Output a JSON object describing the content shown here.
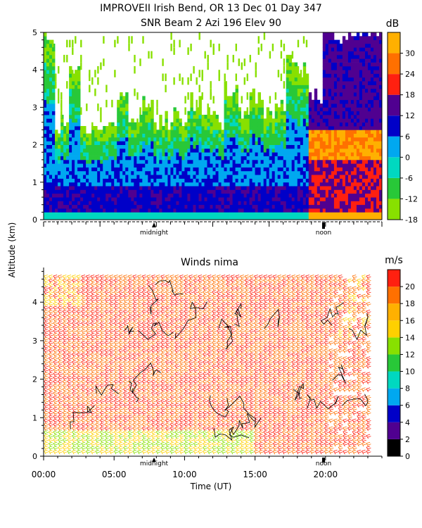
{
  "title_line1": "IMPROVEII  Irish Bend, OR  13 Dec 01 Day 347",
  "title_line2": "SNR Beam 2 Azi 196 Elev 90",
  "ylabel": "Altitude (km)",
  "xlabel": "Time (UT)",
  "marker_midnight": "midnight",
  "marker_noon": "noon",
  "chart_data": [
    {
      "type": "heatmap",
      "title": "SNR Beam 2 Azi 196 Elev 90",
      "colorbar_label": "dB",
      "colorbar_ticks": [
        "30",
        "24",
        "18",
        "12",
        "6",
        "0",
        "-6",
        "-12",
        "-18"
      ],
      "colorbar_range": [
        -18,
        36
      ],
      "x_range_hours": [
        0,
        24
      ],
      "y_range_km": [
        0,
        5
      ],
      "y_ticks": [
        "0",
        "1",
        "2",
        "3",
        "4",
        "5"
      ],
      "colors": [
        "#88e000",
        "#28c838",
        "#00d8c0",
        "#00a8f0",
        "#0000c8",
        "#500090",
        "#ff2010",
        "#ff7000",
        "#ffb000"
      ],
      "signal_top_km": [
        4.8,
        2.5,
        4.2,
        2.2,
        2.3,
        2.4,
        3.2,
        2.8,
        3.0,
        2.6,
        2.7,
        2.6,
        3.1,
        2.9,
        2.7,
        3.5,
        2.9,
        3.2,
        3.0,
        3.0,
        4.4,
        4.0,
        3.3,
        5.0,
        5.0,
        5.0,
        5.0,
        5.0
      ],
      "strong_layer_km": [
        1.6,
        2.4
      ]
    },
    {
      "type": "barbs",
      "title": "Winds nima",
      "colorbar_label": "m/s",
      "colorbar_ticks": [
        "20",
        "18",
        "16",
        "14",
        "12",
        "10",
        "8",
        "6",
        "4",
        "2",
        "0"
      ],
      "colorbar_range": [
        0,
        22
      ],
      "colors": [
        "#000000",
        "#500090",
        "#0000c8",
        "#00a8f0",
        "#00d8c0",
        "#28c838",
        "#88e000",
        "#ffd000",
        "#ffb000",
        "#ff7000",
        "#ff2010"
      ],
      "x_range_hours": [
        0,
        24
      ],
      "x_ticks": [
        "00:00",
        "05:00",
        "10:00",
        "15:00",
        "20:00"
      ],
      "y_range_km": [
        0,
        4.9
      ],
      "y_ticks": [
        "0",
        "1",
        "2",
        "3",
        "4"
      ],
      "dominant_speed_ms": 20,
      "low_level_speed_ms": 14,
      "low_level_top_km": 0.6
    }
  ]
}
